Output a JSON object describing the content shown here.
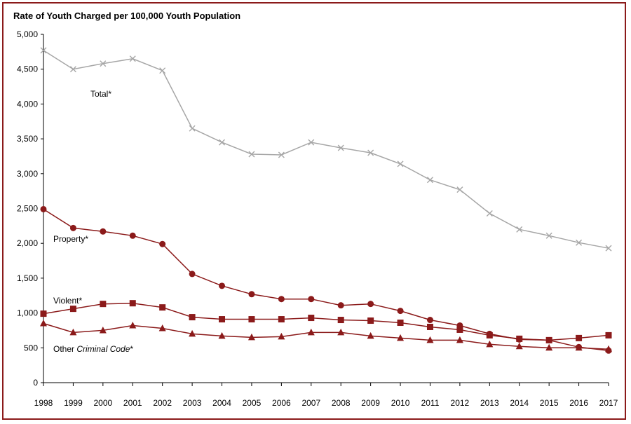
{
  "chart_data": {
    "type": "line",
    "title": "Rate of Youth Charged per 100,000 Youth Population",
    "xlabel": "",
    "ylabel": "",
    "ylim": [
      0,
      5000
    ],
    "yticks": [
      0,
      500,
      1000,
      1500,
      2000,
      2500,
      3000,
      3500,
      4000,
      4500,
      5000
    ],
    "ytick_labels": [
      "0",
      "500",
      "1,000",
      "1,500",
      "2,000",
      "2,500",
      "3,000",
      "3,500",
      "4,000",
      "4,500",
      "5,000"
    ],
    "categories": [
      "1998",
      "1999",
      "2000",
      "2001",
      "2002",
      "2003",
      "2004",
      "2005",
      "2006",
      "2007",
      "2008",
      "2009",
      "2010",
      "2011",
      "2012",
      "2013",
      "2014",
      "2015",
      "2016",
      "2017"
    ],
    "series": [
      {
        "name": "Total*",
        "name_prefix": "Total*",
        "name_italic": "",
        "name_suffix": "",
        "marker": "x",
        "color": "#a6a6a6",
        "values": [
          4770,
          4500,
          4580,
          4650,
          4480,
          3650,
          3450,
          3280,
          3270,
          3450,
          3370,
          3300,
          3140,
          2910,
          2770,
          2430,
          2200,
          2110,
          2010,
          1930
        ]
      },
      {
        "name": "Property*",
        "name_prefix": "Property*",
        "name_italic": "",
        "name_suffix": "",
        "marker": "circle",
        "color": "#8b1a1a",
        "values": [
          2490,
          2220,
          2170,
          2110,
          1990,
          1560,
          1390,
          1270,
          1200,
          1200,
          1110,
          1130,
          1030,
          900,
          820,
          700,
          620,
          610,
          510,
          460
        ]
      },
      {
        "name": "Violent*",
        "name_prefix": "Violent*",
        "name_italic": "",
        "name_suffix": "",
        "marker": "square",
        "color": "#8b1a1a",
        "values": [
          990,
          1060,
          1130,
          1140,
          1080,
          940,
          910,
          910,
          910,
          930,
          900,
          890,
          860,
          800,
          760,
          680,
          630,
          610,
          640,
          680
        ]
      },
      {
        "name": "Other Criminal Code*",
        "name_prefix": "Other ",
        "name_italic": "Criminal Code",
        "name_suffix": "*",
        "marker": "triangle",
        "color": "#8b1a1a",
        "values": [
          850,
          720,
          750,
          820,
          780,
          700,
          670,
          650,
          660,
          720,
          720,
          670,
          640,
          610,
          610,
          550,
          520,
          500,
          500,
          480
        ]
      }
    ]
  }
}
